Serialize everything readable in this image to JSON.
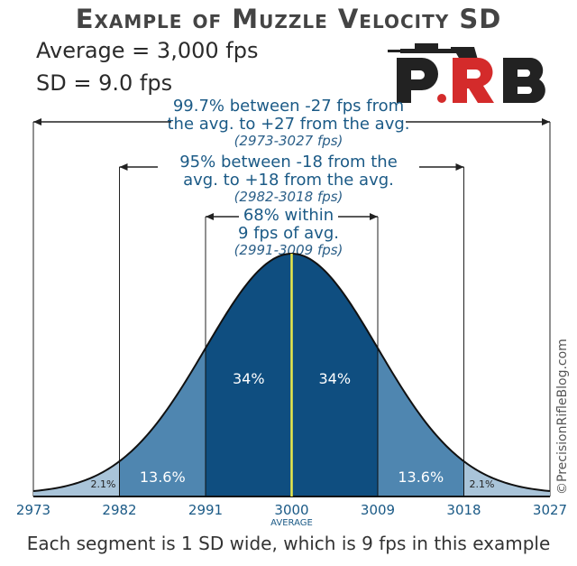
{
  "title": "Example of Muzzle Velocity SD",
  "stats": {
    "average": "Average = 3,000 fps",
    "sd": "SD = 9.0 fps"
  },
  "logo": {
    "text": "PRB",
    "colors": {
      "dark": "#222222",
      "red": "#d42b2b"
    }
  },
  "bands": [
    {
      "line1": "99.7% between -27 fps from",
      "line2": "the avg. to +27 from the avg.",
      "range": "(2973-3027 fps)"
    },
    {
      "line1": "95% between -18 from the",
      "line2": "avg. to +18 from the avg.",
      "range": "(2982-3018 fps)"
    },
    {
      "line1": "68% within",
      "line2": "9 fps of avg.",
      "range": "(2991-3009 fps)"
    }
  ],
  "watermark": "©PrecisionRifleBlog.com",
  "footer": "Each segment is 1 SD wide, which is 9 fps in this example",
  "chart_data": {
    "type": "area",
    "mean": 3000,
    "sd": 9,
    "x_ticks": [
      2973,
      2982,
      2991,
      3000,
      3009,
      3018,
      3027
    ],
    "xlabel_center": "AVERAGE",
    "segments": [
      {
        "from": 2973,
        "to": 2982,
        "label": "2.1%"
      },
      {
        "from": 2982,
        "to": 2991,
        "label": "13.6%"
      },
      {
        "from": 2991,
        "to": 3000,
        "label": "34%"
      },
      {
        "from": 3000,
        "to": 3009,
        "label": "34%"
      },
      {
        "from": 3009,
        "to": 3018,
        "label": "13.6%"
      },
      {
        "from": 3018,
        "to": 3027,
        "label": "2.1%"
      }
    ],
    "colors": {
      "outer": "#a9c4d9",
      "middle": "#4f86b0",
      "inner": "#0f4e80",
      "mean_line": "#e8e84a",
      "outline": "#111111"
    }
  }
}
